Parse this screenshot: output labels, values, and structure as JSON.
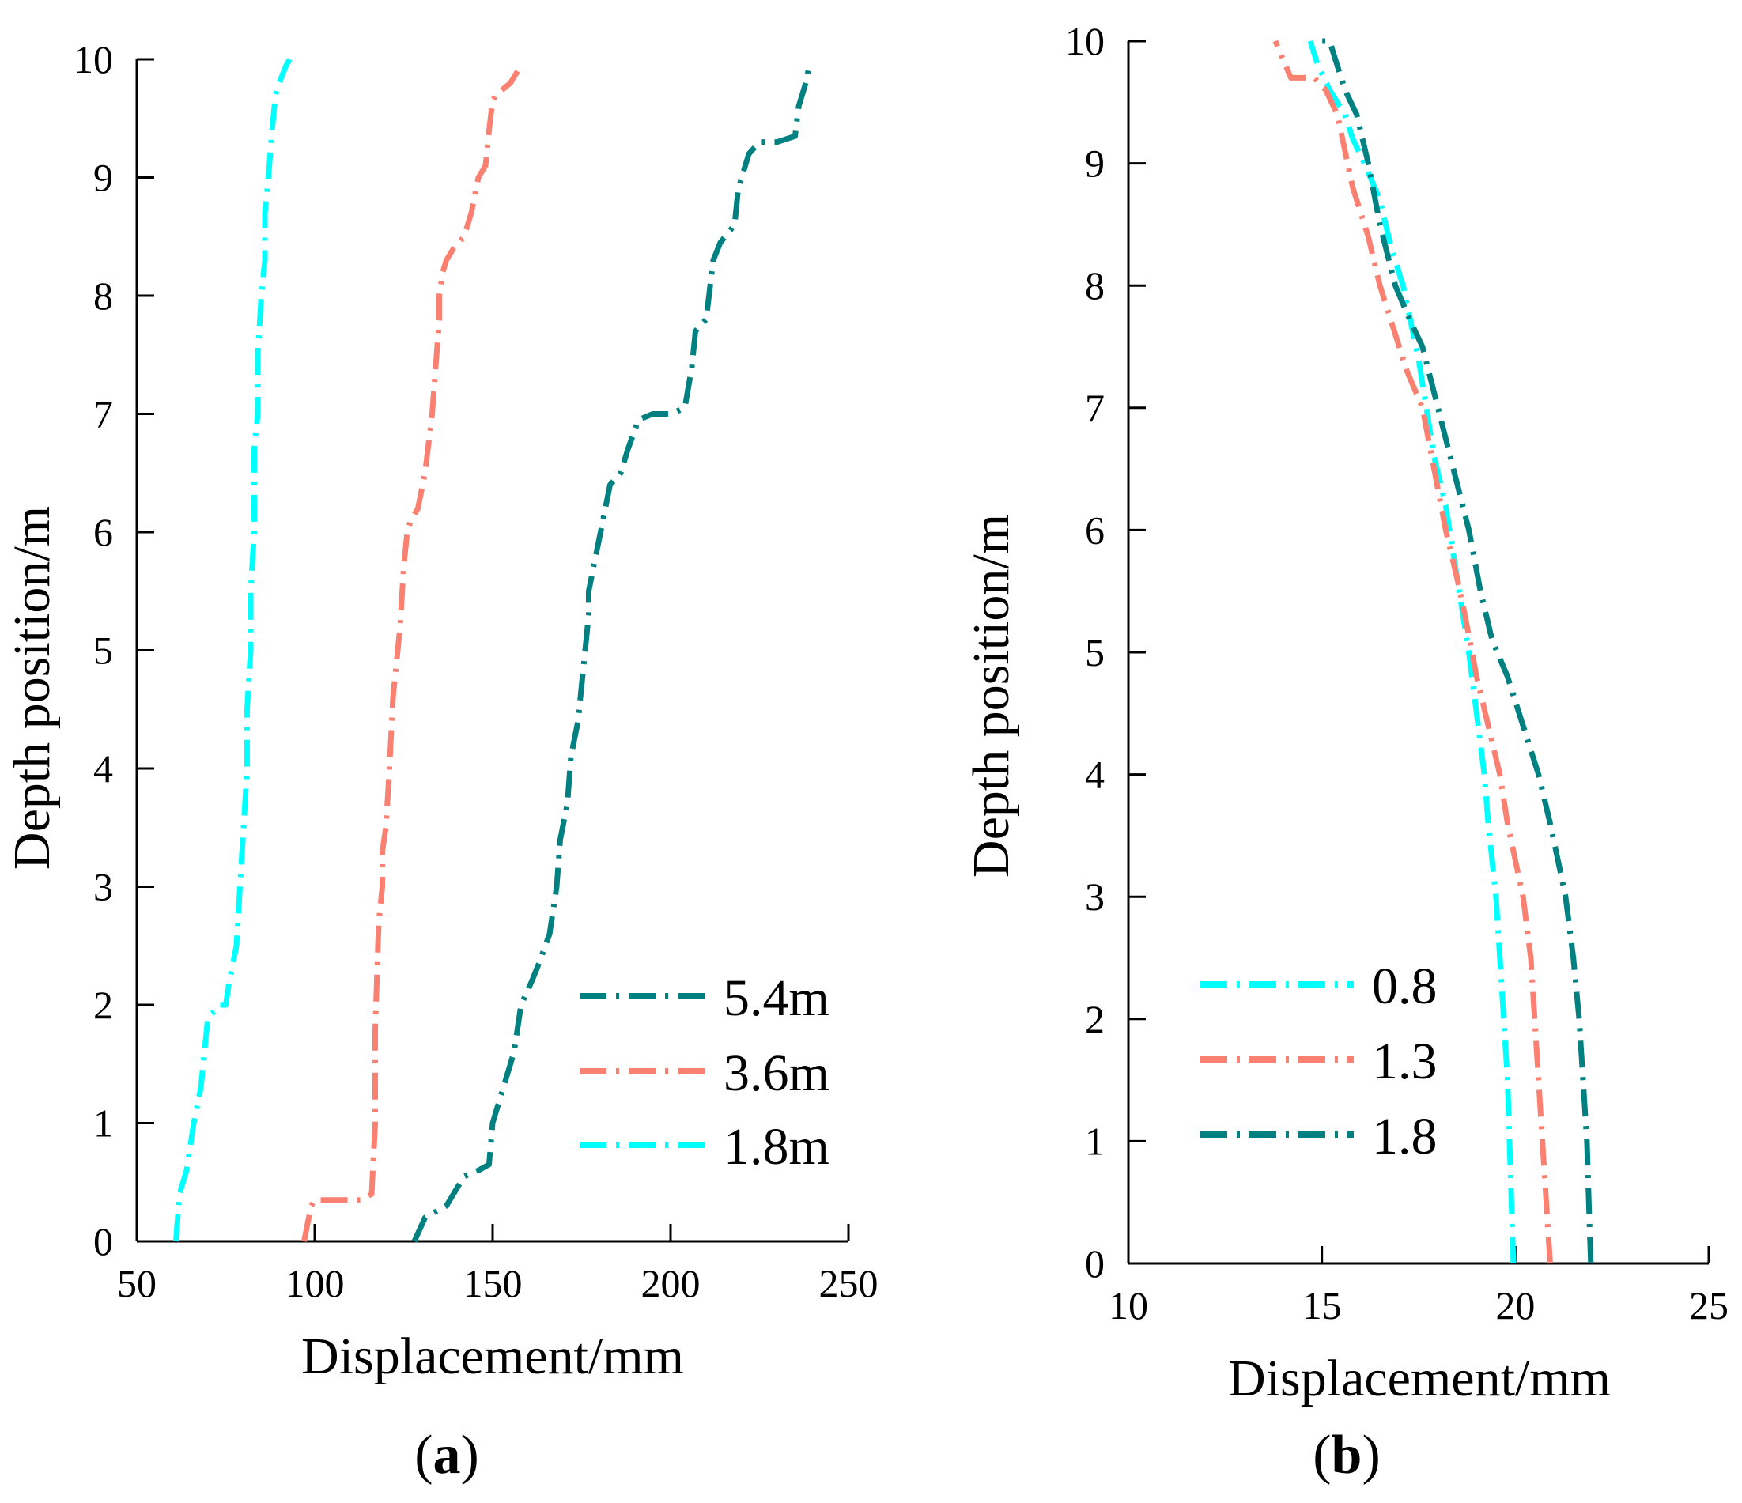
{
  "chart_data": [
    {
      "type": "line",
      "panel_label": "a",
      "xlabel": "Displacement/mm",
      "ylabel": "Depth position/m",
      "xlim": [
        50,
        250
      ],
      "ylim": [
        0,
        10
      ],
      "xticks": [
        50,
        100,
        150,
        200,
        250
      ],
      "yticks": [
        0,
        1,
        2,
        3,
        4,
        5,
        6,
        7,
        8,
        9,
        10
      ],
      "legend_position": "lower-right",
      "series": [
        {
          "name": "5.4m",
          "color": "#008080",
          "x": [
            128,
            131,
            134,
            137,
            140,
            142,
            146,
            149,
            150,
            153,
            156,
            158,
            161,
            163,
            166,
            168,
            169,
            171,
            172,
            174,
            175,
            176,
            177,
            177,
            179,
            181,
            183,
            186,
            188,
            191,
            195,
            200,
            204,
            206,
            207,
            210,
            212,
            214,
            218,
            219,
            222,
            225,
            230,
            235,
            236,
            238,
            239
          ],
          "y": [
            0,
            0.2,
            0.25,
            0.3,
            0.45,
            0.55,
            0.6,
            0.65,
            1.0,
            1.3,
            1.6,
            2.0,
            2.2,
            2.35,
            2.6,
            3.0,
            3.4,
            3.7,
            4.1,
            4.4,
            4.7,
            5.0,
            5.3,
            5.5,
            5.8,
            6.1,
            6.4,
            6.5,
            6.7,
            6.95,
            7.0,
            7.0,
            7.05,
            7.4,
            7.7,
            7.8,
            8.3,
            8.45,
            8.6,
            8.9,
            9.2,
            9.3,
            9.3,
            9.35,
            9.6,
            9.8,
            9.95
          ]
        },
        {
          "name": "3.6m",
          "color": "#FA8072",
          "x": [
            97,
            99,
            100,
            103,
            108,
            113,
            116,
            117,
            117,
            118,
            119,
            119,
            120,
            121,
            122,
            123,
            124,
            125,
            126,
            127,
            129,
            131,
            133,
            134,
            135,
            135,
            136,
            137,
            139,
            142,
            144,
            146,
            148,
            149,
            150,
            151,
            155,
            157
          ],
          "y": [
            0,
            0.3,
            0.35,
            0.35,
            0.35,
            0.35,
            0.4,
            1.0,
            1.8,
            2.7,
            3.0,
            3.3,
            3.5,
            4.0,
            4.6,
            4.9,
            5.2,
            5.7,
            6.0,
            6.1,
            6.2,
            6.5,
            7.0,
            7.4,
            7.8,
            8.0,
            8.2,
            8.3,
            8.4,
            8.5,
            8.7,
            9.0,
            9.1,
            9.4,
            9.65,
            9.7,
            9.8,
            9.9
          ]
        },
        {
          "name": "1.8m",
          "color": "#00FFFF",
          "x": [
            61,
            62,
            64,
            66,
            68,
            69,
            70,
            72,
            73,
            75,
            76,
            78,
            79,
            80,
            81,
            81,
            82,
            82,
            83,
            83,
            83,
            84,
            84,
            85,
            86,
            86,
            87,
            88,
            89,
            90,
            92,
            93
          ],
          "y": [
            0,
            0.4,
            0.6,
            1.0,
            1.3,
            1.6,
            1.9,
            1.95,
            2.0,
            2.0,
            2.2,
            2.5,
            3.0,
            3.5,
            4.0,
            4.5,
            5.0,
            5.5,
            6.0,
            6.3,
            6.7,
            7.0,
            7.5,
            8.0,
            8.3,
            8.7,
            9.0,
            9.4,
            9.7,
            9.8,
            9.95,
            10.0
          ]
        }
      ]
    },
    {
      "type": "line",
      "panel_label": "b",
      "xlabel": "Displacement/mm",
      "ylabel": "Depth position/m",
      "xlim": [
        10,
        25
      ],
      "ylim": [
        0,
        10
      ],
      "xticks": [
        10,
        15,
        20,
        25
      ],
      "yticks": [
        0,
        1,
        2,
        3,
        4,
        5,
        6,
        7,
        8,
        9,
        10
      ],
      "legend_position": "lower-left",
      "series": [
        {
          "name": "0.8",
          "color": "#00FFFF",
          "x": [
            19.95,
            19.9,
            19.85,
            19.8,
            19.7,
            19.6,
            19.5,
            19.4,
            19.3,
            19.2,
            19.0,
            18.8,
            18.6,
            18.4,
            18.2,
            17.9,
            17.7,
            17.5,
            17.3,
            17.1,
            16.8,
            16.5,
            16.1,
            15.8,
            15.6,
            15.2,
            14.9,
            14.7
          ],
          "y": [
            0,
            0.5,
            1.0,
            1.5,
            2.0,
            2.5,
            3.0,
            3.3,
            3.6,
            4.0,
            4.5,
            5.0,
            5.4,
            5.8,
            6.2,
            6.6,
            7.0,
            7.4,
            7.7,
            8.0,
            8.3,
            8.7,
            9.0,
            9.2,
            9.4,
            9.6,
            9.8,
            10.0
          ]
        },
        {
          "name": "1.3",
          "color": "#FA8072",
          "x": [
            20.9,
            20.8,
            20.7,
            20.6,
            20.5,
            20.4,
            20.2,
            20.0,
            19.8,
            19.6,
            19.3,
            19.0,
            18.7,
            18.5,
            18.2,
            17.9,
            17.6,
            17.2,
            16.9,
            16.5,
            16.2,
            15.8,
            15.6,
            15.4,
            15.1,
            14.8,
            14.2,
            13.8
          ],
          "y": [
            0,
            0.5,
            1.0,
            1.5,
            2.0,
            2.5,
            3.0,
            3.3,
            3.6,
            4.0,
            4.4,
            4.8,
            5.3,
            5.6,
            6.0,
            6.5,
            7.0,
            7.3,
            7.6,
            8.0,
            8.4,
            8.8,
            9.1,
            9.4,
            9.6,
            9.7,
            9.7,
            10.0
          ]
        },
        {
          "name": "1.8",
          "color": "#008080",
          "x": [
            21.95,
            21.9,
            21.85,
            21.75,
            21.65,
            21.5,
            21.3,
            21.1,
            20.9,
            20.6,
            20.2,
            19.8,
            19.4,
            19.1,
            18.8,
            18.4,
            18.0,
            17.6,
            17.3,
            16.9,
            16.5,
            16.2,
            15.9,
            15.6,
            15.4,
            15.2,
            14.9
          ],
          "y": [
            0,
            0.5,
            1.0,
            1.5,
            2.0,
            2.5,
            3.0,
            3.3,
            3.6,
            4.0,
            4.4,
            4.8,
            5.1,
            5.5,
            6.0,
            6.5,
            7.0,
            7.5,
            7.7,
            8.0,
            8.5,
            9.0,
            9.4,
            9.6,
            9.8,
            10.0,
            10.0
          ]
        }
      ]
    }
  ]
}
